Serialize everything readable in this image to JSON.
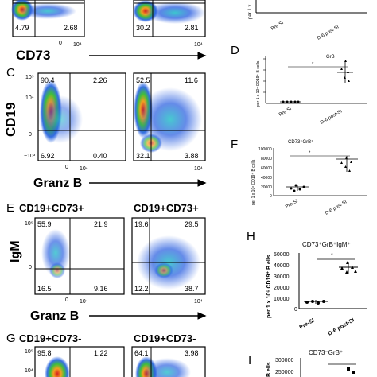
{
  "figure": {
    "panels": {
      "c_letter": "C",
      "d_letter": "D",
      "e_letter": "E",
      "f_letter": "F",
      "g_letter": "G",
      "h_letter": "H",
      "i_letter": "I"
    },
    "flow": {
      "top_row": {
        "q_ll_left": "4.79",
        "q_lr_left": "2.68",
        "q_ll_right": "30.2",
        "q_lr_right": "2.81",
        "xaxis": "CD73"
      },
      "c_row": {
        "y_marker": "CD19",
        "x_marker": "Granz B",
        "left": {
          "ul": "90.4",
          "ur": "2.26",
          "ll": "6.92",
          "lr": "0.40"
        },
        "right": {
          "ul": "52.5",
          "ur": "11.6",
          "ll": "32.1",
          "lr": "3.88"
        }
      },
      "e_row": {
        "y_marker": "IgM",
        "x_marker": "Granz B",
        "left_title": "CD19+CD73+",
        "right_title": "CD19+CD73+",
        "left": {
          "ul": "55.9",
          "ur": "21.9",
          "ll": "16.5",
          "lr": "9.16"
        },
        "right": {
          "ul": "19.6",
          "ur": "29.5",
          "ll": "12.2",
          "lr": "38.7"
        }
      },
      "g_row": {
        "left_title": "CD19+CD73-",
        "right_title": "CD19+CD73-",
        "left": {
          "ul": "95.8",
          "ur": "1.22"
        },
        "right": {
          "ul": "64.1",
          "ur": "3.98"
        }
      },
      "ticks": {
        "t5": "10⁵",
        "t4": "10⁴",
        "t0": "0",
        "tm3": "−10³",
        "tx4": "10⁴",
        "tx0": "0",
        "tx4b": "10⁴"
      }
    },
    "scatter": {
      "top": {
        "ylabel": "per 1 x",
        "x1": "Pre-SI",
        "x2": "D-6 post-SI"
      },
      "d": {
        "title": "GrB+",
        "ylabel": "per 1 x 10⁶ CD19⁺ B cells",
        "x1": "Pre-SI",
        "x2": "D-6 post-SI",
        "star": "*"
      },
      "f": {
        "title": "CD73⁺GrB⁺",
        "ylabel": "per 1 x 10⁶ CD19⁺ B cells",
        "x1": "Pre-SI",
        "x2": "D-6 post-SI",
        "star": "*",
        "ticks": [
          "100000",
          "80000",
          "60000",
          "40000",
          "20000",
          "0"
        ]
      },
      "h": {
        "title": "CD73⁺GrB⁺IgM⁺",
        "ylabel": "per 1 x 10⁶ CD19⁺ B ells",
        "x1": "Pre-SI",
        "x2": "D-6 post-SI",
        "star": "*",
        "ticks": [
          "50000",
          "40000",
          "30000",
          "20000",
          "10000",
          "0"
        ]
      },
      "i": {
        "title": "CD73⁻GrB⁺",
        "ylabel": "B ells",
        "tick_top": "300000",
        "tick_next": "250000"
      }
    }
  }
}
